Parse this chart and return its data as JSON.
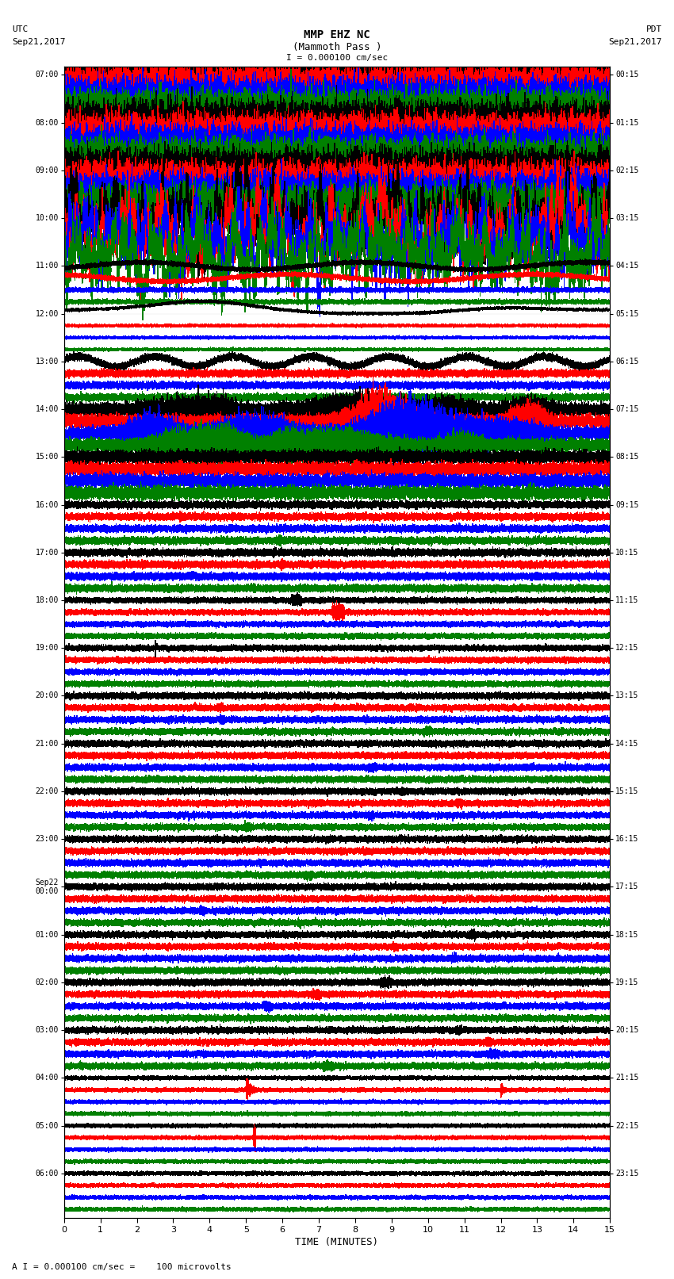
{
  "title_line1": "MMP EHZ NC",
  "title_line2": "(Mammoth Pass )",
  "scale_text": "I = 0.000100 cm/sec",
  "left_label_line1": "UTC",
  "left_label_line2": "Sep21,2017",
  "right_label_line1": "PDT",
  "right_label_line2": "Sep21,2017",
  "xlabel": "TIME (MINUTES)",
  "footer": "A I = 0.000100 cm/sec =    100 microvolts",
  "utc_times": [
    "07:00",
    "",
    "",
    "",
    "08:00",
    "",
    "",
    "",
    "09:00",
    "",
    "",
    "",
    "10:00",
    "",
    "",
    "",
    "11:00",
    "",
    "",
    "",
    "12:00",
    "",
    "",
    "",
    "13:00",
    "",
    "",
    "",
    "14:00",
    "",
    "",
    "",
    "15:00",
    "",
    "",
    "",
    "16:00",
    "",
    "",
    "",
    "17:00",
    "",
    "",
    "",
    "18:00",
    "",
    "",
    "",
    "19:00",
    "",
    "",
    "",
    "20:00",
    "",
    "",
    "",
    "21:00",
    "",
    "",
    "",
    "22:00",
    "",
    "",
    "",
    "23:00",
    "",
    "",
    "",
    "Sep22\n00:00",
    "",
    "",
    "",
    "01:00",
    "",
    "",
    "",
    "02:00",
    "",
    "",
    "",
    "03:00",
    "",
    "",
    "",
    "04:00",
    "",
    "",
    "",
    "05:00",
    "",
    "",
    "",
    "06:00",
    "",
    "",
    ""
  ],
  "pdt_times": [
    "00:15",
    "",
    "",
    "",
    "01:15",
    "",
    "",
    "",
    "02:15",
    "",
    "",
    "",
    "03:15",
    "",
    "",
    "",
    "04:15",
    "",
    "",
    "",
    "05:15",
    "",
    "",
    "",
    "06:15",
    "",
    "",
    "",
    "07:15",
    "",
    "",
    "",
    "08:15",
    "",
    "",
    "",
    "09:15",
    "",
    "",
    "",
    "10:15",
    "",
    "",
    "",
    "11:15",
    "",
    "",
    "",
    "12:15",
    "",
    "",
    "",
    "13:15",
    "",
    "",
    "",
    "14:15",
    "",
    "",
    "",
    "15:15",
    "",
    "",
    "",
    "16:15",
    "",
    "",
    "",
    "17:15",
    "",
    "",
    "",
    "18:15",
    "",
    "",
    "",
    "19:15",
    "",
    "",
    "",
    "20:15",
    "",
    "",
    "",
    "21:15",
    "",
    "",
    "",
    "22:15",
    "",
    "",
    "",
    "23:15",
    "",
    "",
    ""
  ],
  "n_rows": 96,
  "minutes": 15,
  "colors_cycle": [
    "black",
    "red",
    "blue",
    "green"
  ],
  "line_width": 0.35,
  "background_color": "white",
  "xlim": [
    0,
    15
  ],
  "xticks": [
    0,
    1,
    2,
    3,
    4,
    5,
    6,
    7,
    8,
    9,
    10,
    11,
    12,
    13,
    14,
    15
  ]
}
